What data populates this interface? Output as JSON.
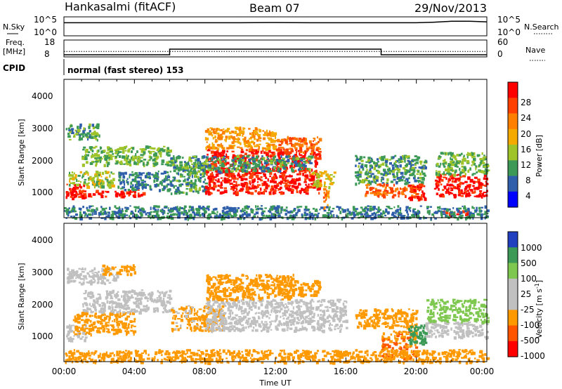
{
  "header": {
    "station": "Hankasalmi (fitACF)",
    "beam": "Beam 07",
    "date": "29/Nov/2013"
  },
  "top_panel": {
    "left_label": "N.Sky",
    "left_ticks": [
      "10^5",
      "10^0"
    ],
    "right_label": "N.Search",
    "right_ticks": [
      "10^5",
      "10^0"
    ]
  },
  "freq_panel": {
    "left_label_1": "Freq.",
    "left_label_2": "[MHz]",
    "left_ticks": [
      "18",
      "8"
    ],
    "right_label": "Nave",
    "right_ticks": [
      "60",
      "0"
    ]
  },
  "cpid": {
    "label": "CPID",
    "text": "normal (fast stereo) 153"
  },
  "axes": {
    "ylabel": "Slant Range [km]",
    "yticks": [
      "4000",
      "3000",
      "2000",
      "1000"
    ],
    "xticks": [
      "00:00",
      "04:00",
      "08:00",
      "12:00",
      "16:00",
      "20:00",
      "00:00"
    ],
    "xlabel": "Time UT"
  },
  "power_colorbar": {
    "label": "Power [dB]",
    "ticks": [
      "28",
      "24",
      "20",
      "16",
      "12",
      "8",
      "4"
    ],
    "colors": [
      "#ff0000",
      "#ff4000",
      "#ff7f00",
      "#f5aa00",
      "#9fc42a",
      "#3c9a56",
      "#2f5faa",
      "#0000ff"
    ]
  },
  "velocity_colorbar": {
    "label": "Velocity [m s",
    "label_sup": "-1",
    "label_end": "]",
    "ticks": [
      "1000",
      "500",
      "100",
      "25",
      "-25",
      "-100",
      "-500",
      "-1000"
    ],
    "colors": [
      "#2040c0",
      "#3c9a56",
      "#7ec850",
      "#c0c0c0",
      "#c0c0c0",
      "#ff9900",
      "#ff5500",
      "#ff0000"
    ]
  },
  "chart_data": [
    {
      "type": "line",
      "title": "N.Sky / N.Search",
      "x": [
        0,
        2,
        4,
        6,
        8,
        10,
        12,
        14,
        16,
        18,
        20,
        21,
        22,
        23,
        24
      ],
      "series": [
        {
          "values": [
            10000,
            10000,
            10000,
            10000,
            10000,
            10000,
            12000,
            10000,
            10000,
            10000,
            10000,
            15000,
            30000,
            30000,
            20000
          ]
        }
      ],
      "ylim": [
        "10^0",
        "10^5"
      ]
    },
    {
      "type": "line",
      "title": "Freq. / Nave",
      "x": [
        0,
        6,
        6,
        18,
        18,
        24
      ],
      "series": [
        {
          "name": "Freq.",
          "values": [
            9,
            9,
            13,
            13,
            9,
            9
          ]
        },
        {
          "name": "Nave",
          "values": [
            20,
            20,
            20,
            20,
            20,
            20
          ]
        }
      ],
      "ylim": [
        8,
        18
      ]
    },
    {
      "type": "heatmap",
      "title": "Power [dB]",
      "xlabel": "Time UT",
      "ylabel": "Slant Range [km]",
      "xlim": [
        0,
        24
      ],
      "ylim": [
        200,
        4600
      ],
      "patches": [
        {
          "t0": 0.1,
          "t1": 1.2,
          "r0": 850,
          "r1": 1350,
          "v": 28
        },
        {
          "t0": 0.3,
          "t1": 4.5,
          "r0": 900,
          "r1": 1100,
          "v": 26
        },
        {
          "t0": 0.2,
          "t1": 2.8,
          "r0": 1200,
          "r1": 1700,
          "v": 12
        },
        {
          "t0": 1.0,
          "t1": 6.0,
          "r0": 1900,
          "r1": 2500,
          "v": 10
        },
        {
          "t0": 0.1,
          "t1": 2.0,
          "r0": 2700,
          "r1": 3200,
          "v": 8
        },
        {
          "t0": 3.0,
          "t1": 6.0,
          "r0": 1100,
          "r1": 1700,
          "v": 6
        },
        {
          "t0": 6.0,
          "t1": 8.0,
          "r0": 1000,
          "r1": 2000,
          "v": 8
        },
        {
          "t0": 8.0,
          "t1": 14.5,
          "r0": 1000,
          "r1": 2400,
          "v": 27
        },
        {
          "t0": 8.0,
          "t1": 12.0,
          "r0": 2400,
          "r1": 3100,
          "v": 18
        },
        {
          "t0": 12.0,
          "t1": 14.5,
          "r0": 2300,
          "r1": 2800,
          "v": 22
        },
        {
          "t0": 6.0,
          "t1": 14.0,
          "r0": 1700,
          "r1": 2200,
          "v": 8
        },
        {
          "t0": 14.0,
          "t1": 15.3,
          "r0": 1200,
          "r1": 1700,
          "v": 14
        },
        {
          "t0": 14.7,
          "t1": 15.0,
          "r0": 400,
          "r1": 1200,
          "v": 20
        },
        {
          "t0": 16.5,
          "t1": 20.5,
          "r0": 1300,
          "r1": 2200,
          "v": 8
        },
        {
          "t0": 17.0,
          "t1": 20.0,
          "r0": 900,
          "r1": 1300,
          "v": 22
        },
        {
          "t0": 19.5,
          "t1": 20.5,
          "r0": 800,
          "r1": 1300,
          "v": 28
        },
        {
          "t0": 21.0,
          "t1": 24.0,
          "r0": 900,
          "r1": 1600,
          "v": 28
        },
        {
          "t0": 21.0,
          "t1": 24.0,
          "r0": 1600,
          "r1": 2300,
          "v": 10
        },
        {
          "t0": 21.5,
          "t1": 23.0,
          "r0": 300,
          "r1": 450,
          "v": 27
        },
        {
          "t0": 0.0,
          "t1": 24.0,
          "r0": 200,
          "r1": 600,
          "v": 6
        }
      ]
    },
    {
      "type": "heatmap",
      "title": "Velocity [m s-1]",
      "xlabel": "Time UT",
      "ylabel": "Slant Range [km]",
      "xlim": [
        0,
        24
      ],
      "ylim": [
        200,
        4600
      ],
      "patches": [
        {
          "t0": 0.1,
          "t1": 1.2,
          "r0": 900,
          "r1": 1400,
          "v": 0
        },
        {
          "t0": 0.5,
          "t1": 4.0,
          "r0": 1100,
          "r1": 1800,
          "v": -150
        },
        {
          "t0": 1.0,
          "t1": 6.0,
          "r0": 1800,
          "r1": 2500,
          "v": 0
        },
        {
          "t0": 0.1,
          "t1": 3.0,
          "r0": 2700,
          "r1": 3200,
          "v": 0
        },
        {
          "t0": 2.0,
          "t1": 4.0,
          "r0": 3000,
          "r1": 3300,
          "v": -200
        },
        {
          "t0": 6.0,
          "t1": 9.0,
          "r0": 1200,
          "r1": 2000,
          "v": -80
        },
        {
          "t0": 8.0,
          "t1": 16.0,
          "r0": 1200,
          "r1": 2200,
          "v": 0
        },
        {
          "t0": 8.0,
          "t1": 13.0,
          "r0": 2200,
          "r1": 3000,
          "v": -120
        },
        {
          "t0": 12.0,
          "t1": 14.5,
          "r0": 2300,
          "r1": 2800,
          "v": -200
        },
        {
          "t0": 16.5,
          "t1": 20.0,
          "r0": 1300,
          "r1": 1900,
          "v": -150
        },
        {
          "t0": 18.0,
          "t1": 20.0,
          "r0": 300,
          "r1": 1200,
          "v": -300
        },
        {
          "t0": 19.5,
          "t1": 20.5,
          "r0": 700,
          "r1": 1400,
          "v": 400
        },
        {
          "t0": 20.5,
          "t1": 24.0,
          "r0": 1000,
          "r1": 1500,
          "v": 0
        },
        {
          "t0": 20.5,
          "t1": 24.0,
          "r0": 1500,
          "r1": 2200,
          "v": 150
        },
        {
          "t0": 0.0,
          "t1": 24.0,
          "r0": 200,
          "r1": 600,
          "v": -100
        }
      ]
    }
  ]
}
